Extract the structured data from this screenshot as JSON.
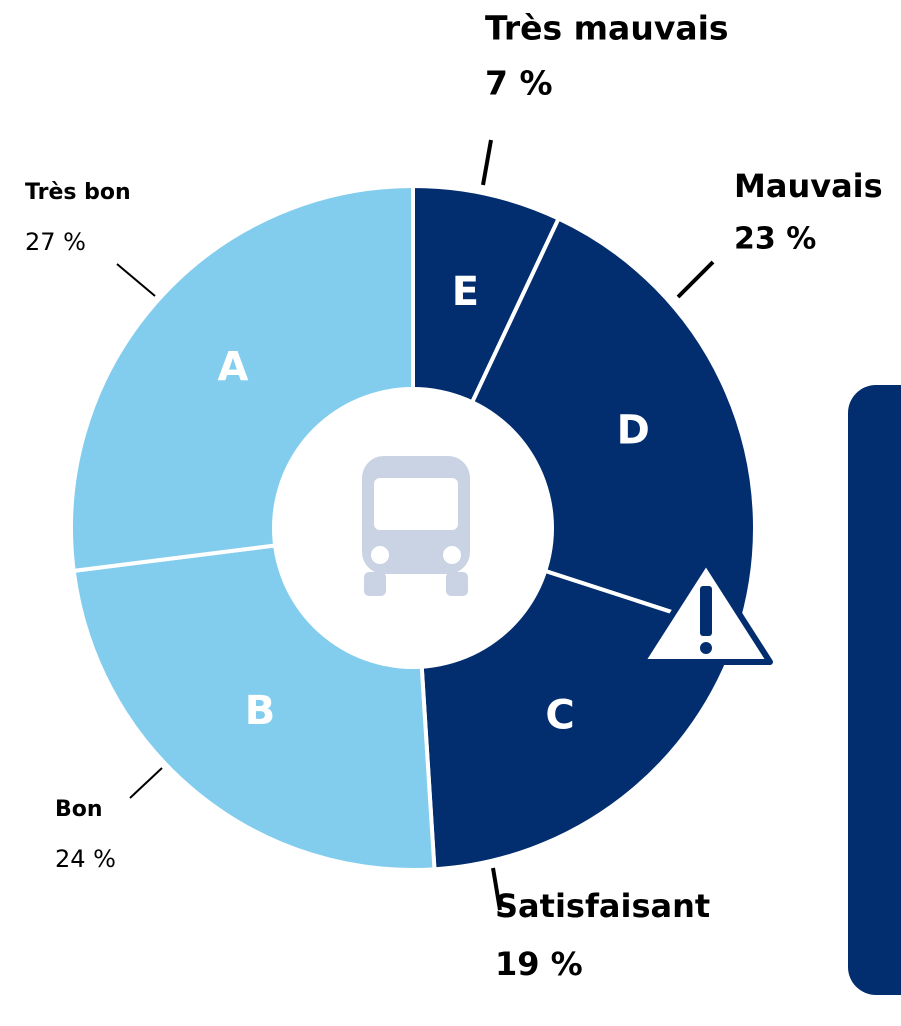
{
  "chart_data": {
    "type": "donut",
    "categories": [
      "Très mauvais",
      "Mauvais",
      "Satisfaisant",
      "Bon",
      "Très bon"
    ],
    "letters": [
      "E",
      "D",
      "C",
      "B",
      "A"
    ],
    "values": [
      7,
      23,
      19,
      24,
      27
    ],
    "value_labels": [
      "7 %",
      "23 %",
      "19 %",
      "24 %",
      "27 %"
    ],
    "colors": [
      "#022d6f",
      "#022d6f",
      "#022d6f",
      "#82cdee",
      "#82cdee"
    ]
  }
}
